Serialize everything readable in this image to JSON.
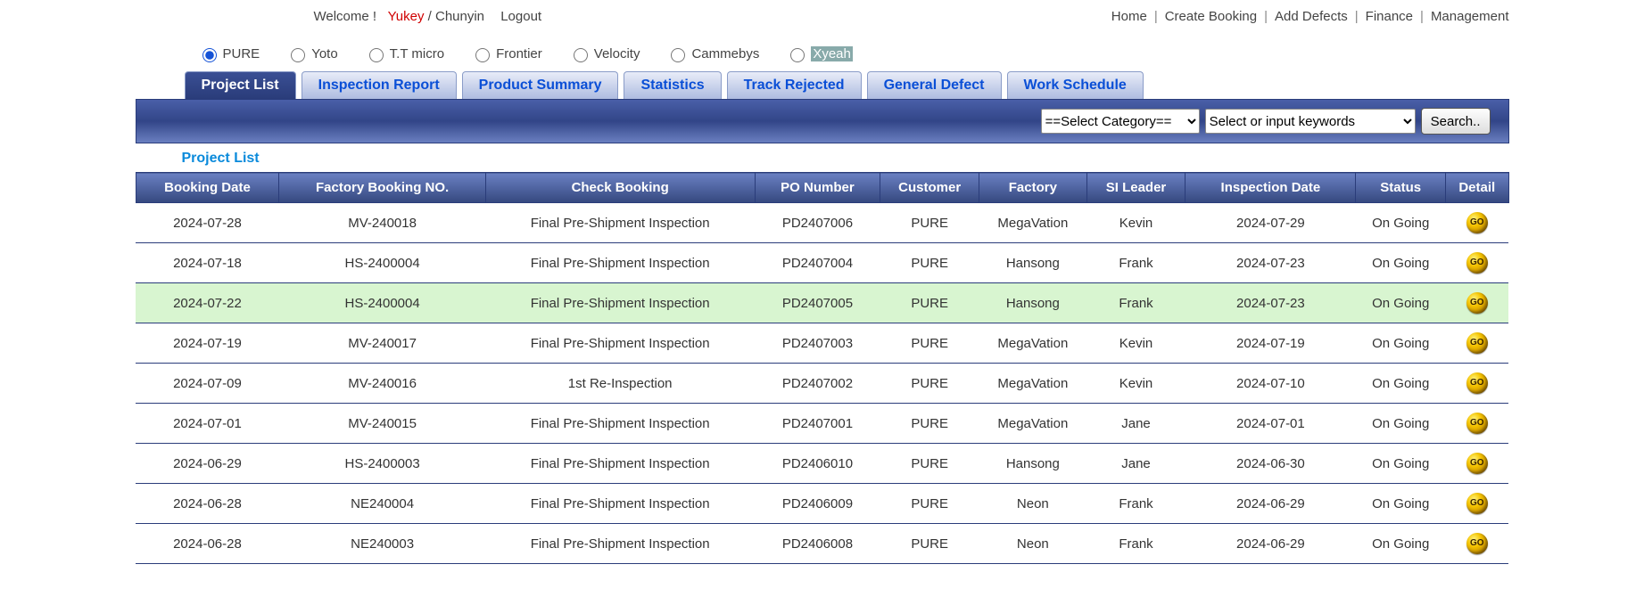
{
  "topbar": {
    "welcome_prefix": "Welcome !",
    "user1": "Yukey",
    "user_sep": " / ",
    "user2": "Chunyin",
    "logout": "Logout",
    "nav": [
      "Home",
      "Create Booking",
      "Add Defects",
      "Finance",
      "Management"
    ]
  },
  "radios": [
    {
      "label": "PURE",
      "checked": true
    },
    {
      "label": "Yoto",
      "checked": false
    },
    {
      "label": "T.T micro",
      "checked": false
    },
    {
      "label": "Frontier",
      "checked": false
    },
    {
      "label": "Velocity",
      "checked": false
    },
    {
      "label": "Cammebys",
      "checked": false
    },
    {
      "label": "Xyeah",
      "checked": false,
      "highlight": true
    }
  ],
  "tabs": [
    {
      "label": "Project List",
      "active": true
    },
    {
      "label": "Inspection Report",
      "active": false
    },
    {
      "label": "Product Summary",
      "active": false
    },
    {
      "label": "Statistics",
      "active": false
    },
    {
      "label": "Track Rejected",
      "active": false
    },
    {
      "label": "General Defect",
      "active": false
    },
    {
      "label": "Work Schedule",
      "active": false
    }
  ],
  "search": {
    "category_placeholder": "==Select Category==",
    "keyword_placeholder": "Select or input keywords",
    "button": "Search.."
  },
  "list_title": "Project List",
  "columns": [
    "Booking Date",
    "Factory Booking NO.",
    "Check Booking",
    "PO Number",
    "Customer",
    "Factory",
    "SI Leader",
    "Inspection Date",
    "Status",
    "Detail"
  ],
  "rows": [
    {
      "booking_date": "2024-07-28",
      "factory_no": "MV-240018",
      "check": "Final Pre-Shipment Inspection",
      "check_red": false,
      "po": "PD2407006",
      "customer": "PURE",
      "factory": "MegaVation",
      "leader": "Kevin",
      "insp_date": "2024-07-29",
      "status": "On Going",
      "hl": false
    },
    {
      "booking_date": "2024-07-18",
      "factory_no": "HS-2400004",
      "check": "Final Pre-Shipment Inspection",
      "check_red": false,
      "po": "PD2407004",
      "customer": "PURE",
      "factory": "Hansong",
      "leader": "Frank",
      "insp_date": "2024-07-23",
      "status": "On Going",
      "hl": false
    },
    {
      "booking_date": "2024-07-22",
      "factory_no": "HS-2400004",
      "check": "Final Pre-Shipment Inspection",
      "check_red": false,
      "po": "PD2407005",
      "customer": "PURE",
      "factory": "Hansong",
      "leader": "Frank",
      "insp_date": "2024-07-23",
      "status": "On Going",
      "hl": true
    },
    {
      "booking_date": "2024-07-19",
      "factory_no": "MV-240017",
      "check": "Final Pre-Shipment Inspection",
      "check_red": false,
      "po": "PD2407003",
      "customer": "PURE",
      "factory": "MegaVation",
      "leader": "Kevin",
      "insp_date": "2024-07-19",
      "status": "On Going",
      "hl": false
    },
    {
      "booking_date": "2024-07-09",
      "factory_no": "MV-240016",
      "check": "1st Re-Inspection",
      "check_red": true,
      "po": "PD2407002",
      "customer": "PURE",
      "factory": "MegaVation",
      "leader": "Kevin",
      "insp_date": "2024-07-10",
      "status": "On Going",
      "hl": false
    },
    {
      "booking_date": "2024-07-01",
      "factory_no": "MV-240015",
      "check": "Final Pre-Shipment Inspection",
      "check_red": false,
      "po": "PD2407001",
      "customer": "PURE",
      "factory": "MegaVation",
      "leader": "Jane",
      "insp_date": "2024-07-01",
      "status": "On Going",
      "hl": false
    },
    {
      "booking_date": "2024-06-29",
      "factory_no": "HS-2400003",
      "check": "Final Pre-Shipment Inspection",
      "check_red": false,
      "po": "PD2406010",
      "customer": "PURE",
      "factory": "Hansong",
      "leader": "Jane",
      "insp_date": "2024-06-30",
      "status": "On Going",
      "hl": false
    },
    {
      "booking_date": "2024-06-28",
      "factory_no": "NE240004",
      "check": "Final Pre-Shipment Inspection",
      "check_red": false,
      "po": "PD2406009",
      "customer": "PURE",
      "factory": "Neon",
      "leader": "Frank",
      "insp_date": "2024-06-29",
      "status": "On Going",
      "hl": false
    },
    {
      "booking_date": "2024-06-28",
      "factory_no": "NE240003",
      "check": "Final Pre-Shipment Inspection",
      "check_red": false,
      "po": "PD2406008",
      "customer": "PURE",
      "factory": "Neon",
      "leader": "Frank",
      "insp_date": "2024-06-29",
      "status": "On Going",
      "hl": false
    }
  ],
  "go_label": "GO",
  "colors": {
    "accent_blue": "#0a4fd6",
    "header_grad_top": "#6a80c2",
    "header_grad_bot": "#35487f",
    "highlight_row": "#d8f5d0",
    "red": "#d00000"
  }
}
